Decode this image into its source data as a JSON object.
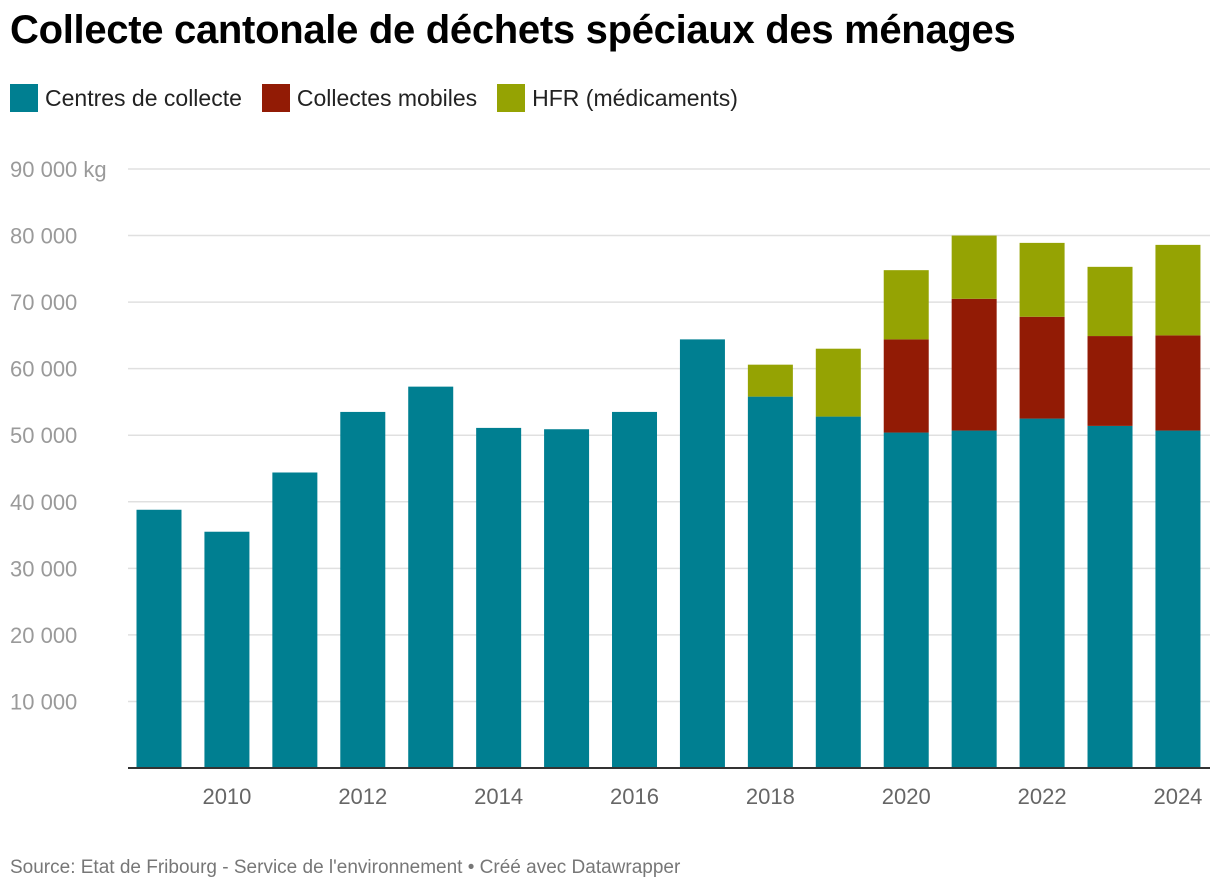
{
  "title": "Collecte cantonale de déchets spéciaux des ménages",
  "footer": "Source: Etat de Fribourg - Service de l'environnement • Créé avec Datawrapper",
  "chart_data": {
    "type": "bar",
    "stacked": true,
    "title": "Collecte cantonale de déchets spéciaux des ménages",
    "ylim": [
      0,
      90000
    ],
    "y_tick_values": [
      10000,
      20000,
      30000,
      40000,
      50000,
      60000,
      70000,
      80000,
      90000
    ],
    "y_tick_labels": [
      "10 000",
      "20 000",
      "30 000",
      "40 000",
      "50 000",
      "60 000",
      "70 000",
      "80 000",
      "90 000 kg"
    ],
    "grid": true,
    "legend_position": "top",
    "categories": [
      "2009",
      "2010",
      "2011",
      "2012",
      "2013",
      "2014",
      "2015",
      "2016",
      "2017",
      "2018",
      "2019",
      "2020",
      "2021",
      "2022",
      "2023",
      "2024"
    ],
    "x_tick_labels": [
      "2010",
      "2012",
      "2014",
      "2016",
      "2018",
      "2020",
      "2022",
      "2024"
    ],
    "series": [
      {
        "name": "Centres de collecte",
        "color": "#007f91",
        "values": [
          38800,
          35500,
          44400,
          53500,
          57300,
          51100,
          50900,
          53500,
          64400,
          55800,
          52800,
          50400,
          50700,
          52500,
          51400,
          50700
        ]
      },
      {
        "name": "Collectes mobiles",
        "color": "#921b05",
        "values": [
          0,
          0,
          0,
          0,
          0,
          0,
          0,
          0,
          0,
          0,
          0,
          14000,
          19800,
          15300,
          13500,
          14300
        ]
      },
      {
        "name": "HFR (médicaments)",
        "color": "#95a303",
        "values": [
          0,
          0,
          0,
          0,
          0,
          0,
          0,
          0,
          0,
          4800,
          10200,
          10400,
          9500,
          11100,
          10400,
          13600
        ]
      }
    ]
  }
}
